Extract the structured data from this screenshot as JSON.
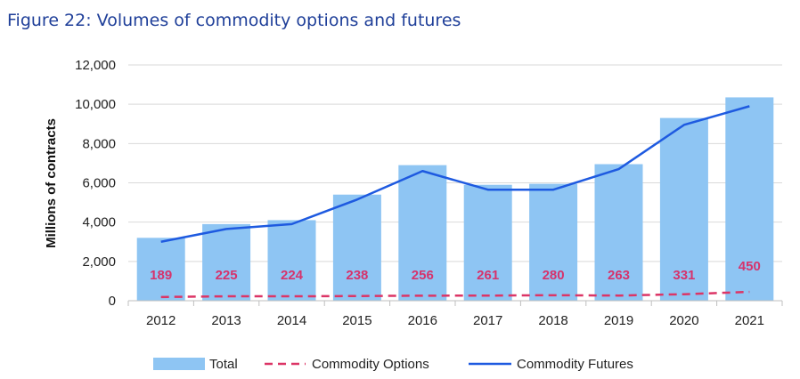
{
  "title": "Figure 22: Volumes of commodity options and futures",
  "colors": {
    "title": "#1f3f99",
    "bar": "#8ec5f3",
    "futures_line": "#1e5ae0",
    "options_line": "#dc3566",
    "data_label": "#d6336c",
    "grid": "#d9d9d9"
  },
  "chart_data": {
    "type": "bar",
    "title": "Figure 22: Volumes of commodity options and futures",
    "xlabel": "",
    "ylabel": "Millions of contracts",
    "ylim": [
      0,
      12000
    ],
    "yticks": [
      "0",
      "2,000",
      "4,000",
      "6,000",
      "8,000",
      "10,000",
      "12,000"
    ],
    "grid": "horizontal",
    "legend_position": "bottom",
    "categories": [
      "2012",
      "2013",
      "2014",
      "2015",
      "2016",
      "2017",
      "2018",
      "2019",
      "2020",
      "2021"
    ],
    "series": [
      {
        "name": "Total",
        "type": "bar",
        "values": [
          3200,
          3900,
          4100,
          5400,
          6900,
          5900,
          5950,
          6950,
          9300,
          10350
        ]
      },
      {
        "name": "Commodity Options",
        "type": "line",
        "style": "dashed",
        "values": [
          189,
          225,
          224,
          238,
          256,
          261,
          280,
          263,
          331,
          450
        ],
        "data_labels": [
          "189",
          "225",
          "224",
          "238",
          "256",
          "261",
          "280",
          "263",
          "331",
          "450"
        ]
      },
      {
        "name": "Commodity Futures",
        "type": "line",
        "style": "solid",
        "values": [
          3000,
          3650,
          3900,
          5150,
          6600,
          5650,
          5650,
          6700,
          8950,
          9900
        ]
      }
    ]
  }
}
